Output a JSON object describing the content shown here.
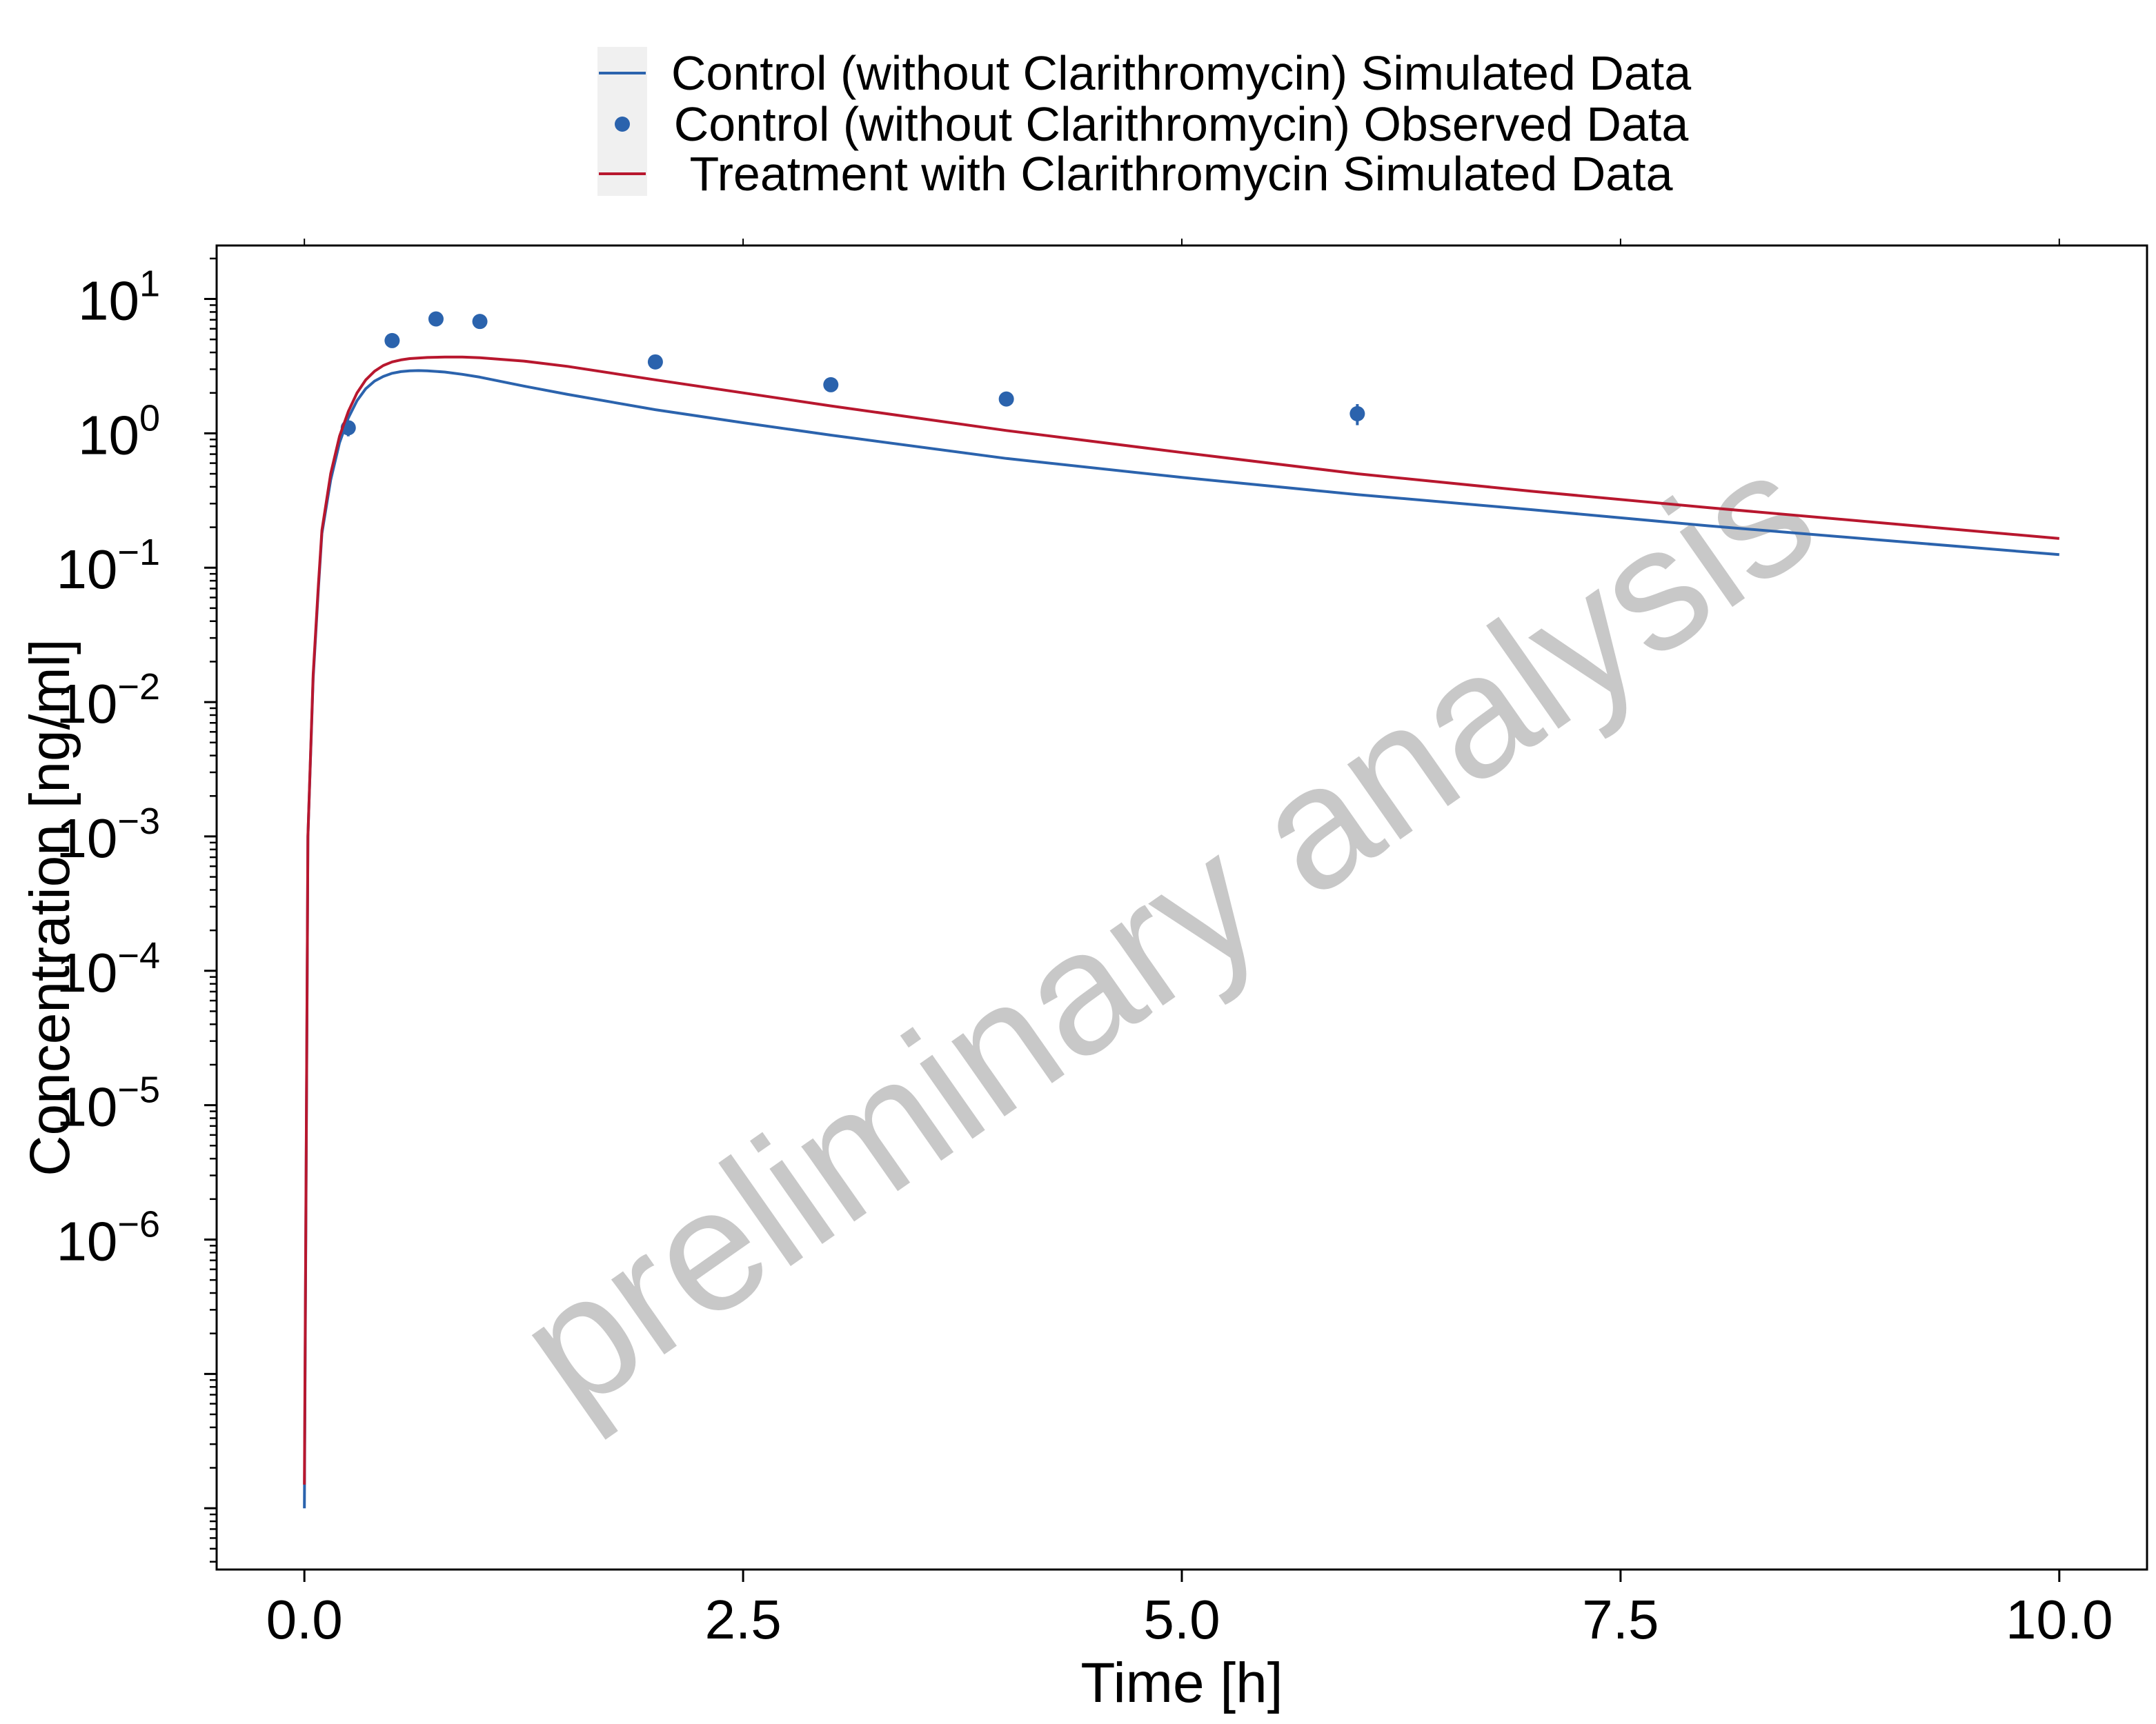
{
  "chart_data": {
    "type": "line",
    "xlabel": "Time [h]",
    "ylabel": "Concentration [ng/ml]",
    "xlim": [
      -0.5,
      10.5
    ],
    "ylim": [
      3.5e-09,
      25
    ],
    "y_scale": "log",
    "x_ticks": [
      {
        "value": 0,
        "label": "0.0"
      },
      {
        "value": 2.5,
        "label": "2.5"
      },
      {
        "value": 5,
        "label": "5.0"
      },
      {
        "value": 7.5,
        "label": "7.5"
      },
      {
        "value": 10,
        "label": "10.0"
      }
    ],
    "y_ticks": [
      {
        "value": 10,
        "base": "10",
        "exp": "1"
      },
      {
        "value": 1,
        "base": "10",
        "exp": "0"
      },
      {
        "value": 0.1,
        "base": "10",
        "exp": "−1"
      },
      {
        "value": 0.01,
        "base": "10",
        "exp": "−2"
      },
      {
        "value": 0.001,
        "base": "10",
        "exp": "−3"
      },
      {
        "value": 0.0001,
        "base": "10",
        "exp": "−4"
      },
      {
        "value": 1e-05,
        "base": "10",
        "exp": "−5"
      },
      {
        "value": 1e-06,
        "base": "10",
        "exp": "−6"
      },
      {
        "value": 1e-07,
        "base": "",
        "exp": ""
      },
      {
        "value": 1e-08,
        "base": "",
        "exp": ""
      }
    ],
    "grid": false,
    "legend_position": "top-center",
    "legend": [
      {
        "label": "Control (without Clarithromycin) Simulated Data",
        "kind": "line",
        "color": "#2b63ad"
      },
      {
        "label": "Control (without Clarithromycin) Observed Data",
        "kind": "point",
        "color": "#2b63ad"
      },
      {
        "label": "Treatment with Clarithromycin Simulated Data",
        "kind": "line",
        "color": "#b8172e"
      }
    ],
    "series": [
      {
        "name": "Control (without Clarithromycin) Simulated Data",
        "kind": "line",
        "color": "#2b63ad",
        "x": [
          0.0,
          0.02,
          0.05,
          0.08,
          0.1,
          0.15,
          0.2,
          0.25,
          0.3,
          0.35,
          0.4,
          0.45,
          0.5,
          0.55,
          0.6,
          0.65,
          0.7,
          0.8,
          0.9,
          1.0,
          1.25,
          1.5,
          2.0,
          2.5,
          3.0,
          4.0,
          5.0,
          6.0,
          7.0,
          8.0,
          9.0,
          10.0
        ],
        "y": [
          1e-08,
          0.001,
          0.015,
          0.07,
          0.18,
          0.45,
          0.85,
          1.3,
          1.75,
          2.15,
          2.45,
          2.65,
          2.8,
          2.88,
          2.92,
          2.93,
          2.92,
          2.86,
          2.75,
          2.62,
          2.25,
          1.95,
          1.5,
          1.2,
          0.97,
          0.65,
          0.47,
          0.35,
          0.27,
          0.205,
          0.16,
          0.125
        ]
      },
      {
        "name": "Control (without Clarithromycin) Observed Data",
        "kind": "scatter",
        "color": "#2b63ad",
        "x": [
          0.25,
          0.5,
          0.75,
          1.0,
          2.0,
          3.0,
          4.0,
          6.0
        ],
        "y": [
          1.1,
          4.9,
          7.1,
          6.8,
          3.4,
          2.3,
          1.8,
          1.4
        ],
        "err_low": [
          0.95,
          4.6,
          6.7,
          6.4,
          3.2,
          2.1,
          1.65,
          1.15
        ],
        "err_high": [
          1.2,
          5.2,
          7.4,
          7.1,
          3.6,
          2.5,
          1.95,
          1.65
        ]
      },
      {
        "name": "Treatment with Clarithromycin Simulated Data",
        "kind": "line",
        "color": "#b8172e",
        "x": [
          0.0,
          0.02,
          0.05,
          0.08,
          0.1,
          0.15,
          0.2,
          0.25,
          0.3,
          0.35,
          0.4,
          0.45,
          0.5,
          0.55,
          0.6,
          0.7,
          0.8,
          0.9,
          1.0,
          1.25,
          1.5,
          2.0,
          2.5,
          3.0,
          4.0,
          5.0,
          6.0,
          7.0,
          8.0,
          9.0,
          10.0
        ],
        "y": [
          1.5e-08,
          0.001,
          0.016,
          0.075,
          0.19,
          0.5,
          0.95,
          1.45,
          2.0,
          2.5,
          2.9,
          3.2,
          3.4,
          3.52,
          3.6,
          3.67,
          3.7,
          3.7,
          3.65,
          3.45,
          3.15,
          2.5,
          2.0,
          1.6,
          1.05,
          0.72,
          0.5,
          0.37,
          0.28,
          0.215,
          0.165
        ]
      }
    ],
    "watermark": "preliminary analysis"
  }
}
